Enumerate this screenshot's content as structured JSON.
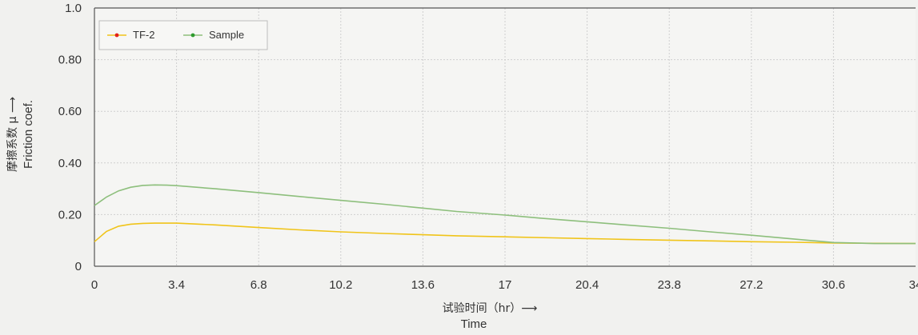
{
  "chart_data": {
    "type": "line",
    "xlabel_cn": "试验时间（hr）⟶",
    "xlabel_en": "Time",
    "ylabel_cn": "摩擦系数 μ ⟶",
    "ylabel_en": "Friction coef.",
    "x_ticks": [
      "0",
      "3.4",
      "6.8",
      "10.2",
      "13.6",
      "17",
      "20.4",
      "23.8",
      "27.2",
      "30.6",
      "34"
    ],
    "y_ticks": [
      "0",
      "0.20",
      "0.40",
      "0.60",
      "0.80",
      "1.0"
    ],
    "xlim": [
      0,
      34
    ],
    "ylim": [
      0,
      1.0
    ],
    "grid": true,
    "legend_position": "top-left",
    "series": [
      {
        "name": "TF-2",
        "color": "#f0c419",
        "marker_color": "#e2231a",
        "x": [
          0,
          0.5,
          1,
          1.5,
          2,
          2.5,
          3,
          3.4,
          5,
          6.8,
          8.5,
          10.2,
          12,
          13.6,
          15,
          17,
          19,
          20.4,
          22,
          23.8,
          25.5,
          27.2,
          29,
          30.6,
          32.3,
          34
        ],
        "y": [
          0.095,
          0.135,
          0.155,
          0.163,
          0.166,
          0.167,
          0.167,
          0.167,
          0.16,
          0.15,
          0.141,
          0.133,
          0.127,
          0.122,
          0.118,
          0.114,
          0.11,
          0.107,
          0.104,
          0.101,
          0.098,
          0.095,
          0.093,
          0.09,
          0.089,
          0.088
        ]
      },
      {
        "name": "Sample",
        "color": "#8dbf7c",
        "marker_color": "#2e9b2e",
        "x": [
          0,
          0.5,
          1,
          1.5,
          2,
          2.5,
          3,
          3.4,
          5,
          6.8,
          8.5,
          10.2,
          12,
          13.6,
          15,
          17,
          18.5,
          20.4,
          22,
          23.8,
          25.5,
          27.2,
          29,
          30.6,
          32.3,
          34
        ],
        "y": [
          0.235,
          0.268,
          0.292,
          0.306,
          0.313,
          0.315,
          0.314,
          0.312,
          0.3,
          0.285,
          0.27,
          0.255,
          0.24,
          0.225,
          0.212,
          0.198,
          0.186,
          0.172,
          0.16,
          0.147,
          0.133,
          0.12,
          0.105,
          0.092,
          0.088,
          0.088
        ]
      }
    ]
  }
}
